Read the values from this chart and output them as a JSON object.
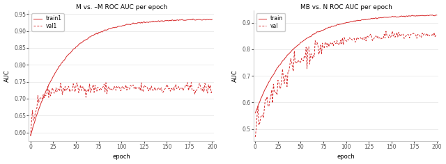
{
  "left_title": "M vs. –M ROC AUC per epoch",
  "right_title": "MB vs. N ROC AUC per epoch",
  "xlabel": "epoch",
  "ylabel": "AUC",
  "left_legend_train": "train1",
  "left_legend_val": "val1",
  "right_legend_train": "train",
  "right_legend_val": "val",
  "color": "#d62728",
  "left_ylim": [
    0.575,
    0.96
  ],
  "right_ylim": [
    0.455,
    0.945
  ],
  "left_yticks": [
    0.6,
    0.65,
    0.7,
    0.75,
    0.8,
    0.85,
    0.9,
    0.95
  ],
  "right_yticks": [
    0.5,
    0.6,
    0.7,
    0.8,
    0.9
  ],
  "xticks": [
    0,
    25,
    50,
    75,
    100,
    125,
    150,
    175,
    200
  ],
  "title_fontsize": 6.5,
  "label_fontsize": 6.0,
  "tick_fontsize": 5.5,
  "legend_fontsize": 5.5,
  "linewidth": 0.7
}
